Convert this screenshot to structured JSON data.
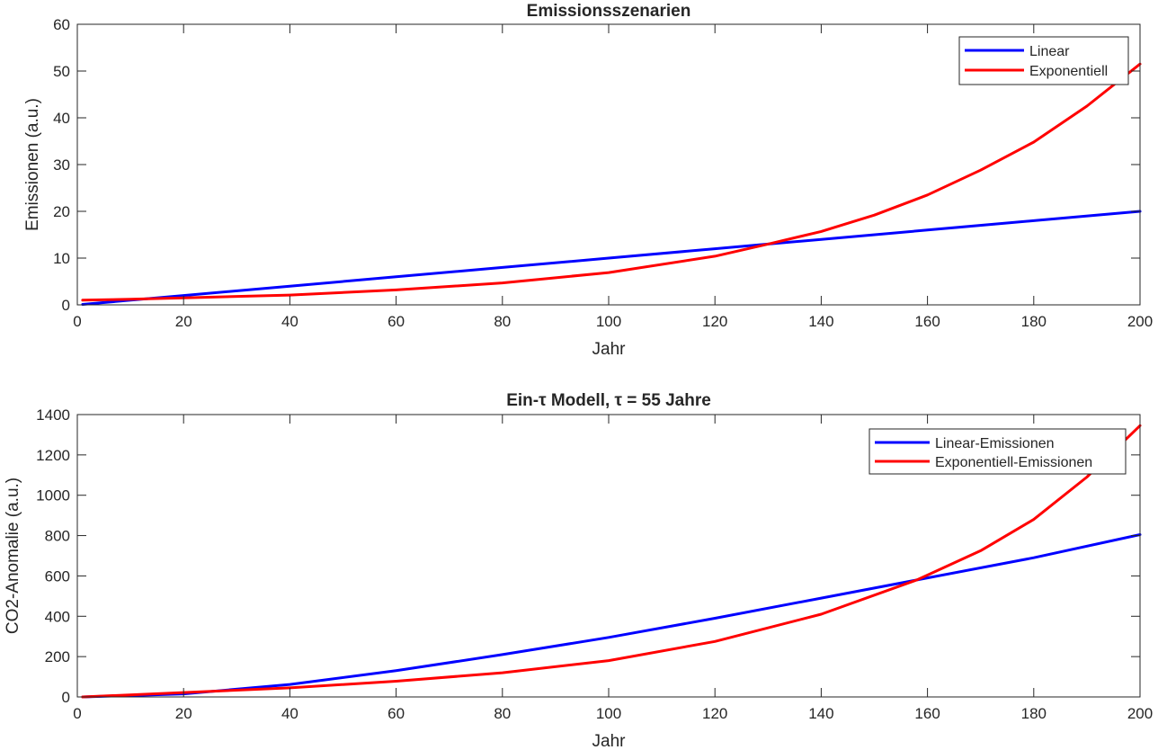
{
  "chart_data": [
    {
      "type": "line",
      "title": "Emissionsszenarien",
      "xlabel": "Jahr",
      "ylabel": "Emissionen (a.u.)",
      "xlim": [
        0,
        200
      ],
      "ylim": [
        0,
        60
      ],
      "xticks": [
        0,
        20,
        40,
        60,
        80,
        100,
        120,
        140,
        160,
        180,
        200
      ],
      "yticks": [
        0,
        10,
        20,
        30,
        40,
        50,
        60
      ],
      "legend_position": "top-right",
      "grid": false,
      "series": [
        {
          "name": "Linear",
          "color": "#0000ff",
          "x": [
            1,
            20,
            40,
            60,
            80,
            100,
            120,
            130,
            140,
            160,
            180,
            200
          ],
          "y": [
            0.1,
            2,
            4,
            6,
            8,
            10,
            12,
            13,
            14,
            16,
            18,
            20
          ]
        },
        {
          "name": "Exponentiell",
          "color": "#ff0000",
          "x": [
            1,
            10,
            20,
            40,
            60,
            80,
            100,
            120,
            130,
            140,
            150,
            160,
            170,
            180,
            190,
            200
          ],
          "y": [
            1.0,
            1.2,
            1.5,
            2.1,
            3.2,
            4.7,
            6.9,
            10.4,
            13.0,
            15.7,
            19.2,
            23.5,
            28.8,
            34.8,
            42.5,
            51.5
          ]
        }
      ]
    },
    {
      "type": "line",
      "title": "Ein-τ Modell, τ = 55 Jahre",
      "xlabel": "Jahr",
      "ylabel": "CO2-Anomalie (a.u.)",
      "xlim": [
        0,
        200
      ],
      "ylim": [
        0,
        1400
      ],
      "xticks": [
        0,
        20,
        40,
        60,
        80,
        100,
        120,
        140,
        160,
        180,
        200
      ],
      "yticks": [
        0,
        200,
        400,
        600,
        800,
        1000,
        1200,
        1400
      ],
      "legend_position": "top-right",
      "grid": false,
      "series": [
        {
          "name": "Linear-Emissionen",
          "color": "#0000ff",
          "x": [
            1,
            20,
            40,
            60,
            80,
            100,
            120,
            140,
            158,
            180,
            200
          ],
          "y": [
            0,
            15,
            62,
            130,
            210,
            295,
            390,
            490,
            580,
            690,
            805
          ]
        },
        {
          "name": "Exponentiell-Emissionen",
          "color": "#ff0000",
          "x": [
            1,
            20,
            40,
            60,
            80,
            100,
            120,
            140,
            158,
            170,
            180,
            190,
            200
          ],
          "y": [
            0,
            22,
            45,
            78,
            120,
            180,
            275,
            410,
            580,
            725,
            880,
            1090,
            1345
          ]
        }
      ]
    }
  ]
}
